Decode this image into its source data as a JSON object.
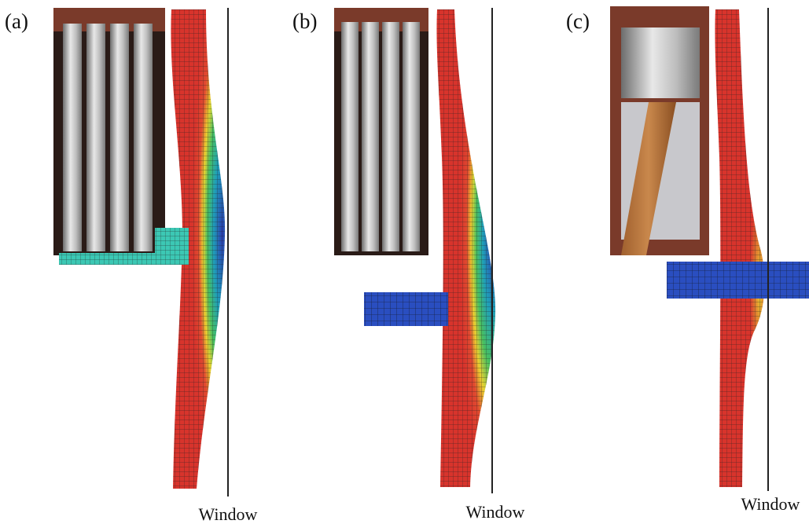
{
  "panels": [
    {
      "label": "(a)",
      "window_label": "Window"
    },
    {
      "label": "(b)",
      "window_label": "Window"
    },
    {
      "label": "(c)",
      "window_label": "Window"
    }
  ]
}
